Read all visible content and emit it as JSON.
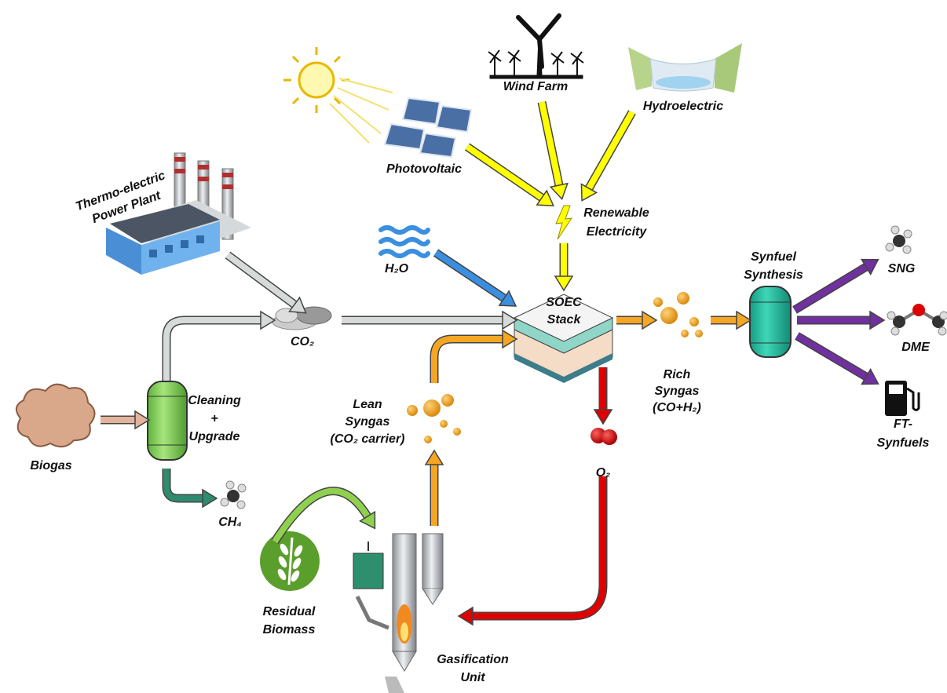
{
  "labels": [
    [
      "Wind Farm"
    ],
    [
      "Hydroelectric"
    ],
    [
      "Photovoltaic"
    ],
    [
      "Thermo-electric",
      "Power Plant"
    ],
    [
      "Renewable",
      "Electricity"
    ],
    [
      "H₂O"
    ],
    [
      "SOEC",
      "Stack"
    ],
    [
      "CO₂"
    ],
    [
      "Synfuel",
      "Synthesis"
    ],
    [
      "SNG"
    ],
    [
      "DME"
    ],
    [
      "FT-",
      "Synfuels"
    ],
    [
      "Rich",
      "Syngas",
      "(CO+H₂)"
    ],
    [
      "Lean",
      "Syngas",
      "(CO₂ carrier)"
    ],
    [
      "O₂"
    ],
    [
      "Cleaning",
      "+",
      "Upgrade"
    ],
    [
      "Biogas"
    ],
    [
      "CH₄"
    ],
    [
      "Residual",
      "Biomass"
    ],
    [
      "Gasification",
      "Unit"
    ]
  ]
}
